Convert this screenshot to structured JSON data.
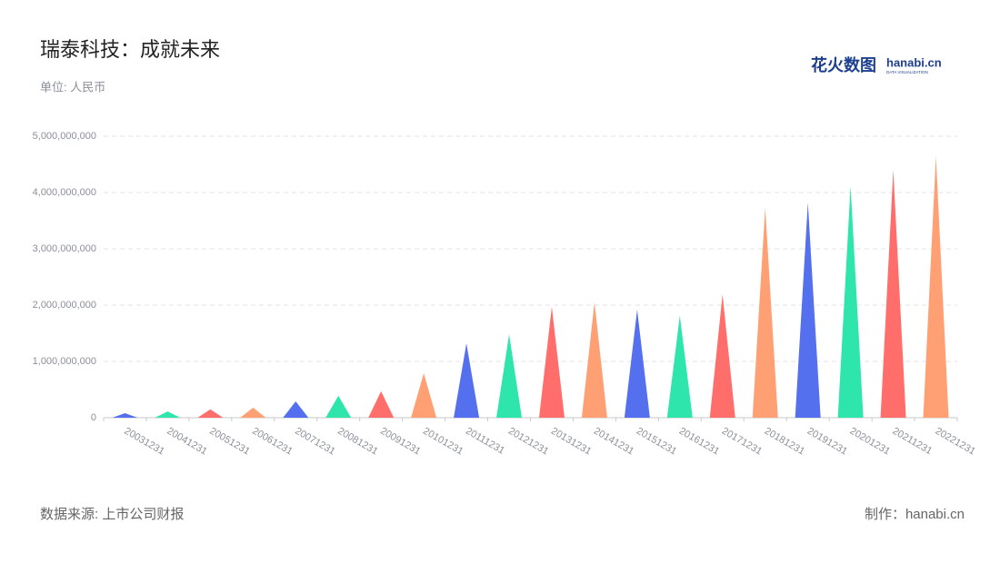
{
  "chart_data": {
    "type": "spike",
    "title": "瑞泰科技：成就未来",
    "subtitle": "单位: 人民币",
    "source": "数据来源: 上市公司财报",
    "credit": "制作：hanabi.cn",
    "logo": {
      "name": "花火数图",
      "brand": "hanabi.cn",
      "tagline": "DATA VISUALIZATION"
    },
    "categories": [
      "20031231",
      "20041231",
      "20051231",
      "20061231",
      "20071231",
      "20081231",
      "20091231",
      "20101231",
      "20111231",
      "20121231",
      "20131231",
      "20141231",
      "20151231",
      "20161231",
      "20171231",
      "20181231",
      "20191231",
      "20201231",
      "20211231",
      "20221231"
    ],
    "values": [
      80000000,
      110000000,
      150000000,
      180000000,
      290000000,
      390000000,
      470000000,
      790000000,
      1320000000,
      1480000000,
      1970000000,
      2050000000,
      1920000000,
      1810000000,
      2190000000,
      3730000000,
      3820000000,
      4110000000,
      4400000000,
      4650000000
    ],
    "colors": [
      "#5470ee",
      "#2ee6ac",
      "#ff6e6a",
      "#ffa074"
    ],
    "ylim": [
      0,
      5000000000
    ],
    "yticks": [
      0,
      {
        "value": 1000000000,
        "label": "1,000,000,000"
      },
      {
        "value": 2000000000,
        "label": "2,000,000,000"
      },
      {
        "value": 3000000000,
        "label": "3,000,000,000"
      },
      {
        "value": 4000000000,
        "label": "4,000,000,000"
      },
      {
        "value": 5000000000,
        "label": "5,000,000,000"
      }
    ],
    "grid": true
  }
}
